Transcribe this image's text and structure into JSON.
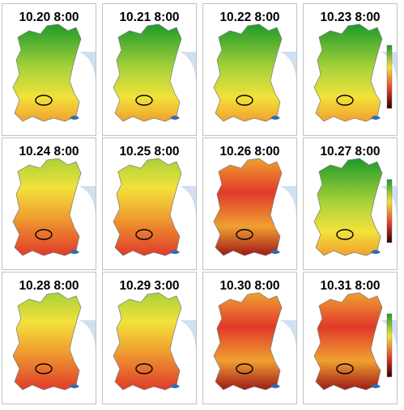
{
  "panels": [
    {
      "title": "10.20 8:00",
      "scheme": "pm",
      "pollution": 0.28,
      "legend": false
    },
    {
      "title": "10.21 8:00",
      "scheme": "pm",
      "pollution": 0.3,
      "legend": false
    },
    {
      "title": "10.22 8:00",
      "scheme": "pm",
      "pollution": 0.36,
      "legend": false
    },
    {
      "title": "10.23 8:00",
      "scheme": "pm",
      "pollution": 0.42,
      "legend": true
    },
    {
      "title": "10.24 8:00",
      "scheme": "pm",
      "pollution": 0.55,
      "legend": false
    },
    {
      "title": "10.25 8:00",
      "scheme": "pm",
      "pollution": 0.7,
      "legend": false
    },
    {
      "title": "10.26 8:00",
      "scheme": "pm",
      "pollution": 0.85,
      "legend": false
    },
    {
      "title": "10.27 8:00",
      "scheme": "pm",
      "pollution": 0.45,
      "legend": true
    },
    {
      "title": "10.28 8:00",
      "scheme": "pm",
      "pollution": 0.55,
      "legend": false
    },
    {
      "title": "10.29 3:00",
      "scheme": "pm",
      "pollution": 0.75,
      "legend": false
    },
    {
      "title": "10.30 8:00",
      "scheme": "pm",
      "pollution": 0.82,
      "legend": false
    },
    {
      "title": "10.31 8:00",
      "scheme": "pm",
      "pollution": 0.95,
      "legend": true
    }
  ],
  "colors": {
    "green": "#1e9a2a",
    "yellowgreen": "#a8d23a",
    "yellow": "#f2e23a",
    "orange": "#f0a030",
    "red": "#e03a2a",
    "darkred": "#a01818",
    "sea": "#cfe0f0",
    "border": "#777777",
    "logo": "#2f6bb0"
  }
}
